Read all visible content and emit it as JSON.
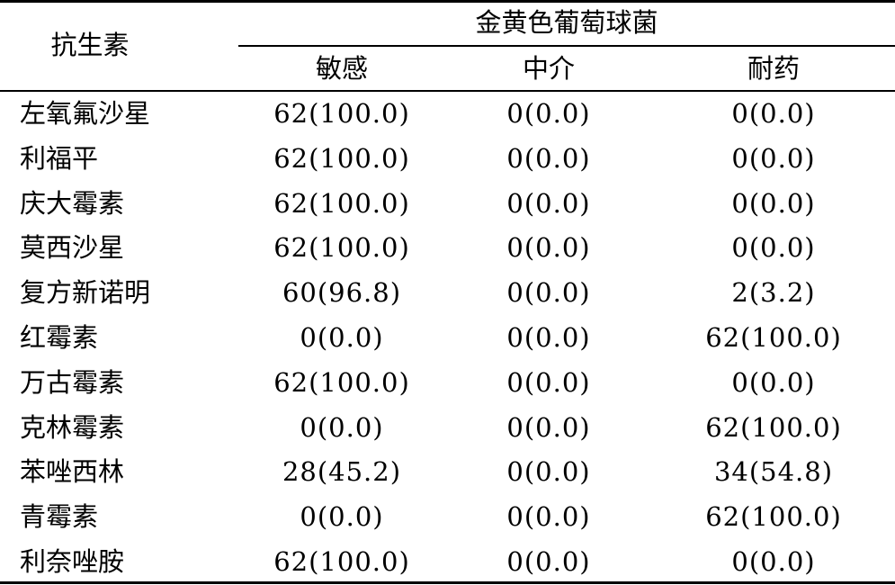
{
  "table": {
    "row_header": "抗生素",
    "group_header": "金黄色葡萄球菌",
    "sub_headers": [
      "敏感",
      "中介",
      "耐药"
    ],
    "rows": [
      {
        "antibiotic": "左氧氟沙星",
        "sensitive": "62(100.0)",
        "intermediate": "0(0.0)",
        "resistant": "0(0.0)"
      },
      {
        "antibiotic": "利福平",
        "sensitive": "62(100.0)",
        "intermediate": "0(0.0)",
        "resistant": "0(0.0)"
      },
      {
        "antibiotic": "庆大霉素",
        "sensitive": "62(100.0)",
        "intermediate": "0(0.0)",
        "resistant": "0(0.0)"
      },
      {
        "antibiotic": "莫西沙星",
        "sensitive": "62(100.0)",
        "intermediate": "0(0.0)",
        "resistant": "0(0.0)"
      },
      {
        "antibiotic": "复方新诺明",
        "sensitive": "60(96.8)",
        "intermediate": "0(0.0)",
        "resistant": "2(3.2)"
      },
      {
        "antibiotic": "红霉素",
        "sensitive": "0(0.0)",
        "intermediate": "0(0.0)",
        "resistant": "62(100.0)"
      },
      {
        "antibiotic": "万古霉素",
        "sensitive": "62(100.0)",
        "intermediate": "0(0.0)",
        "resistant": "0(0.0)"
      },
      {
        "antibiotic": "克林霉素",
        "sensitive": "0(0.0)",
        "intermediate": "0(0.0)",
        "resistant": "62(100.0)"
      },
      {
        "antibiotic": "苯唑西林",
        "sensitive": "28(45.2)",
        "intermediate": "0(0.0)",
        "resistant": "34(54.8)"
      },
      {
        "antibiotic": "青霉素",
        "sensitive": "0(0.0)",
        "intermediate": "0(0.0)",
        "resistant": "62(100.0)"
      },
      {
        "antibiotic": "利奈唑胺",
        "sensitive": "62(100.0)",
        "intermediate": "0(0.0)",
        "resistant": "0(0.0)"
      }
    ]
  }
}
